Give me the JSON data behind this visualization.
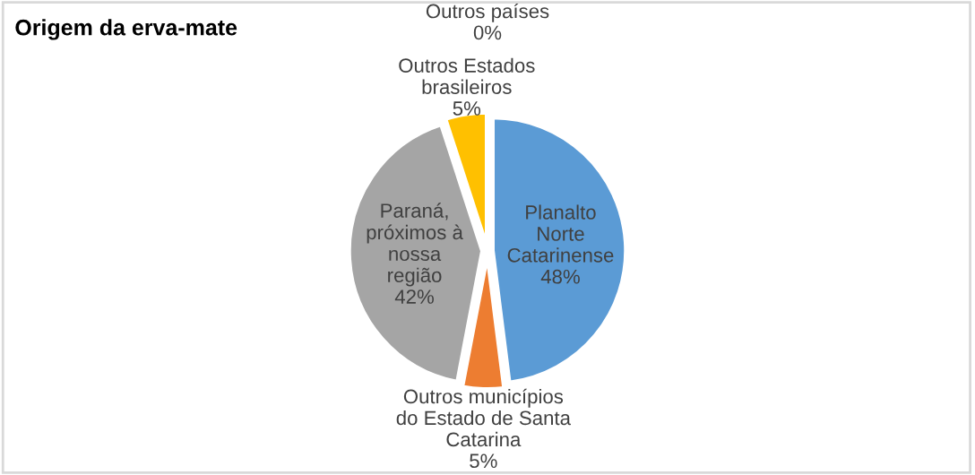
{
  "chart_data": {
    "type": "pie",
    "title": "Origem da erva-mate",
    "categories": [
      "Planalto Norte Catarinense",
      "Outros municípios do Estado de Santa Catarina",
      "Paraná, próximos à nossa região",
      "Outros Estados brasileiros",
      "Outros países"
    ],
    "values": [
      48,
      5,
      42,
      5,
      0
    ],
    "value_labels": [
      "48%",
      "5%",
      "42%",
      "5%",
      "0%"
    ],
    "colors": [
      "#5b9bd5",
      "#ed7d31",
      "#a5a5a5",
      "#ffc000",
      "#4472c4"
    ],
    "legend": false
  }
}
